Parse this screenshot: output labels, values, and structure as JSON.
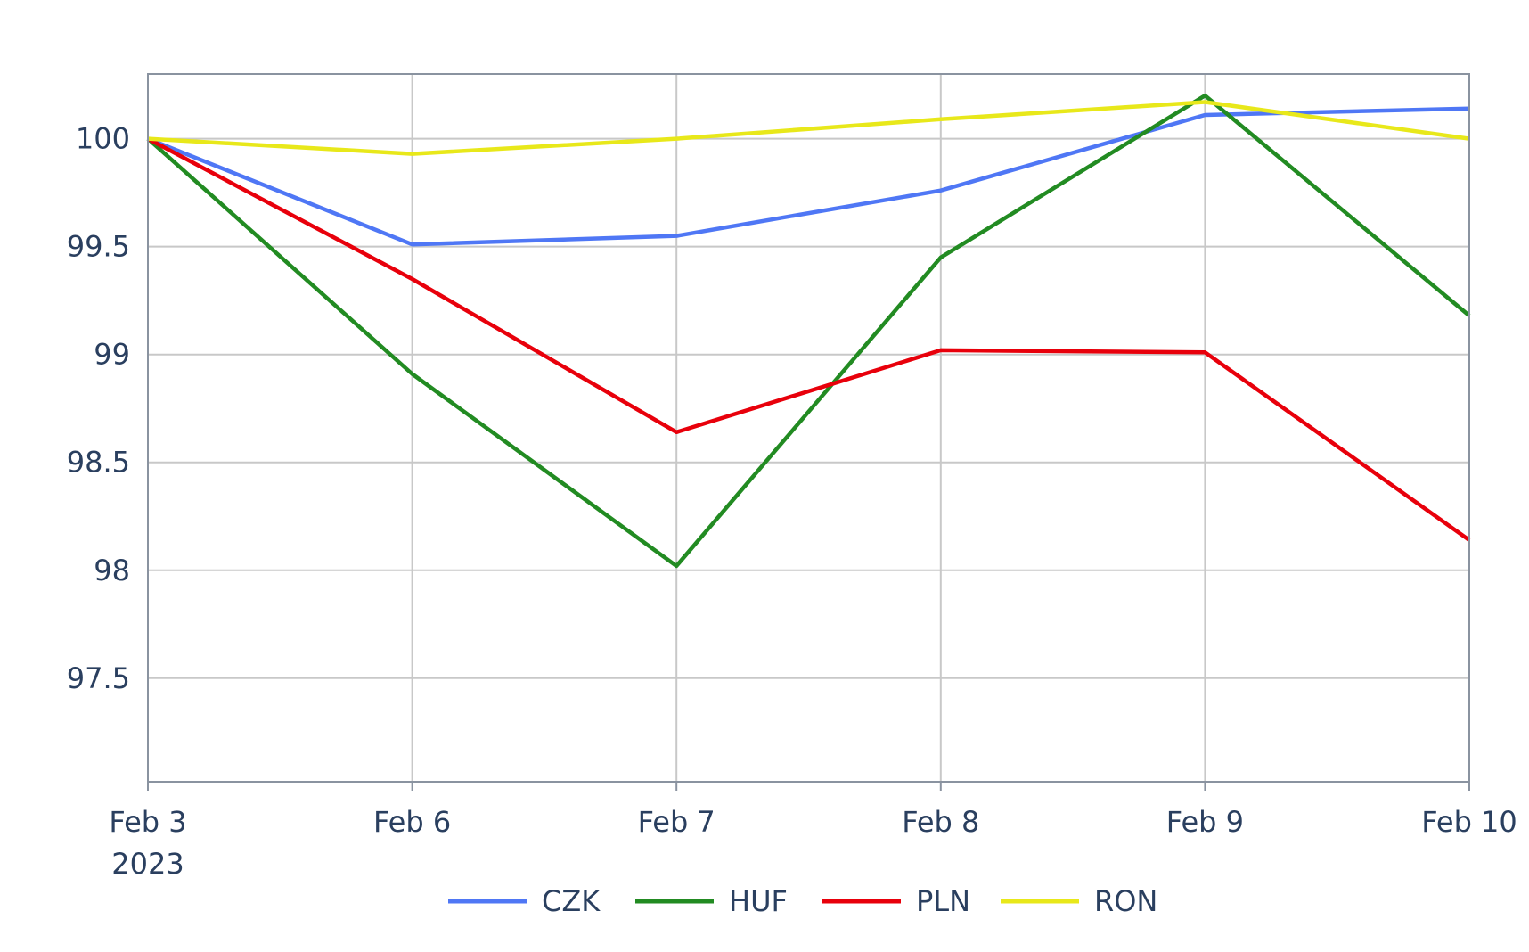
{
  "chart_data": {
    "type": "line",
    "title": "",
    "xlabel": "",
    "ylabel": "",
    "x": [
      "Feb 3",
      "Feb 6",
      "Feb 7",
      "Feb 8",
      "Feb 9",
      "Feb 10"
    ],
    "x_year_label": "2023",
    "yticks": [
      "97.5",
      "98",
      "98.5",
      "99",
      "99.5",
      "100"
    ],
    "ytick_values": [
      97.5,
      98,
      98.5,
      99,
      99.5,
      100
    ],
    "ylim": [
      97.02,
      100.3
    ],
    "grid": true,
    "legend_position": "bottom",
    "series": [
      {
        "name": "CZK",
        "color": "#4f77f5",
        "values": [
          100.0,
          99.51,
          99.55,
          99.76,
          100.11,
          100.14
        ]
      },
      {
        "name": "HUF",
        "color": "#228b22",
        "values": [
          100.0,
          98.91,
          98.02,
          99.45,
          100.2,
          99.18
        ]
      },
      {
        "name": "PLN",
        "color": "#e8000b",
        "values": [
          100.0,
          99.35,
          98.64,
          99.02,
          99.01,
          98.14
        ]
      },
      {
        "name": "RON",
        "color": "#e8e81a",
        "values": [
          100.0,
          99.93,
          100.0,
          100.09,
          100.17,
          100.0
        ]
      }
    ]
  }
}
